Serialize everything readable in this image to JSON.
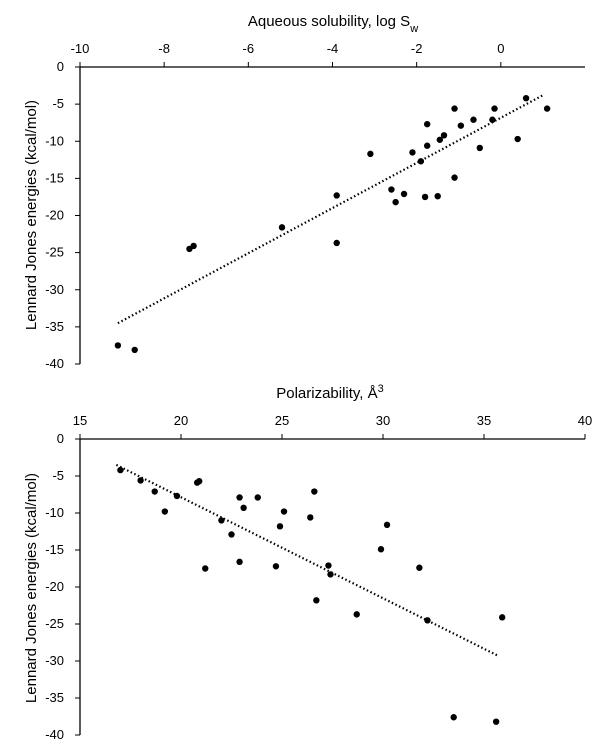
{
  "chart_data": [
    {
      "type": "scatter",
      "title": "",
      "xlabel": "Aqueous solubility, log S",
      "xlabel_sub": "w",
      "ylabel": "Lennard Jones energies (kcal/mol)",
      "xlim": [
        -10,
        2
      ],
      "ylim": [
        -40,
        0
      ],
      "x_ticks": [
        -10,
        -8,
        -6,
        -4,
        -2,
        0
      ],
      "y_ticks": [
        0,
        -5,
        -10,
        -15,
        -20,
        -25,
        -30,
        -35,
        -40
      ],
      "x_axis_position": "top",
      "grid": false,
      "legend": "none",
      "points": [
        {
          "x": -9.1,
          "y": -37.5
        },
        {
          "x": -8.7,
          "y": -38.1
        },
        {
          "x": -7.4,
          "y": -24.5
        },
        {
          "x": -7.3,
          "y": -24.1
        },
        {
          "x": -5.2,
          "y": -21.6
        },
        {
          "x": -3.9,
          "y": -23.7
        },
        {
          "x": -3.9,
          "y": -17.3
        },
        {
          "x": -3.1,
          "y": -11.7
        },
        {
          "x": -2.6,
          "y": -16.5
        },
        {
          "x": -2.5,
          "y": -18.2
        },
        {
          "x": -2.3,
          "y": -17.1
        },
        {
          "x": -2.1,
          "y": -11.5
        },
        {
          "x": -1.9,
          "y": -12.7
        },
        {
          "x": -1.8,
          "y": -17.5
        },
        {
          "x": -1.75,
          "y": -10.6
        },
        {
          "x": -1.75,
          "y": -7.7
        },
        {
          "x": -1.5,
          "y": -17.4
        },
        {
          "x": -1.45,
          "y": -9.8
        },
        {
          "x": -1.35,
          "y": -9.2
        },
        {
          "x": -1.1,
          "y": -14.9
        },
        {
          "x": -1.1,
          "y": -5.6
        },
        {
          "x": -0.95,
          "y": -7.9
        },
        {
          "x": -0.65,
          "y": -7.1
        },
        {
          "x": -0.5,
          "y": -10.9
        },
        {
          "x": -0.2,
          "y": -7.1
        },
        {
          "x": -0.15,
          "y": -5.6
        },
        {
          "x": 0.4,
          "y": -9.7
        },
        {
          "x": 0.6,
          "y": -4.2
        },
        {
          "x": 1.1,
          "y": -5.6
        }
      ],
      "trendline": {
        "style": "dotted",
        "x": [
          -9.1,
          1.0
        ],
        "y": [
          -34.5,
          -3.8
        ]
      }
    },
    {
      "type": "scatter",
      "title": "",
      "xlabel": "Polarizability, Å",
      "xlabel_sup": "3",
      "ylabel": "Lennard Jones energies (kcal/mol)",
      "xlim": [
        15,
        40
      ],
      "ylim": [
        -40,
        0
      ],
      "x_ticks": [
        15,
        20,
        25,
        30,
        35,
        40
      ],
      "y_ticks": [
        0,
        -5,
        -10,
        -15,
        -20,
        -25,
        -30,
        -35,
        -40
      ],
      "x_axis_position": "top",
      "grid": false,
      "legend": "none",
      "points": [
        {
          "x": 17.0,
          "y": -4.2
        },
        {
          "x": 18.0,
          "y": -5.6
        },
        {
          "x": 18.7,
          "y": -7.1
        },
        {
          "x": 19.2,
          "y": -9.8
        },
        {
          "x": 19.8,
          "y": -7.7
        },
        {
          "x": 20.8,
          "y": -5.9
        },
        {
          "x": 20.9,
          "y": -5.7
        },
        {
          "x": 21.2,
          "y": -17.5
        },
        {
          "x": 22.0,
          "y": -11.0
        },
        {
          "x": 22.5,
          "y": -12.9
        },
        {
          "x": 22.9,
          "y": -7.9
        },
        {
          "x": 22.9,
          "y": -16.6
        },
        {
          "x": 23.1,
          "y": -9.3
        },
        {
          "x": 23.8,
          "y": -7.9
        },
        {
          "x": 24.7,
          "y": -17.2
        },
        {
          "x": 24.9,
          "y": -11.8
        },
        {
          "x": 25.1,
          "y": -9.8
        },
        {
          "x": 26.4,
          "y": -10.6
        },
        {
          "x": 26.6,
          "y": -7.1
        },
        {
          "x": 26.7,
          "y": -21.8
        },
        {
          "x": 27.3,
          "y": -17.1
        },
        {
          "x": 27.4,
          "y": -18.3
        },
        {
          "x": 28.7,
          "y": -23.7
        },
        {
          "x": 29.9,
          "y": -14.9
        },
        {
          "x": 30.2,
          "y": -11.6
        },
        {
          "x": 31.8,
          "y": -17.4
        },
        {
          "x": 32.2,
          "y": -24.5
        },
        {
          "x": 33.5,
          "y": -37.6
        },
        {
          "x": 35.6,
          "y": -38.2
        },
        {
          "x": 35.9,
          "y": -24.1
        }
      ],
      "trendline": {
        "style": "dotted",
        "x": [
          16.8,
          35.7
        ],
        "y": [
          -3.5,
          -29.3
        ]
      }
    }
  ]
}
